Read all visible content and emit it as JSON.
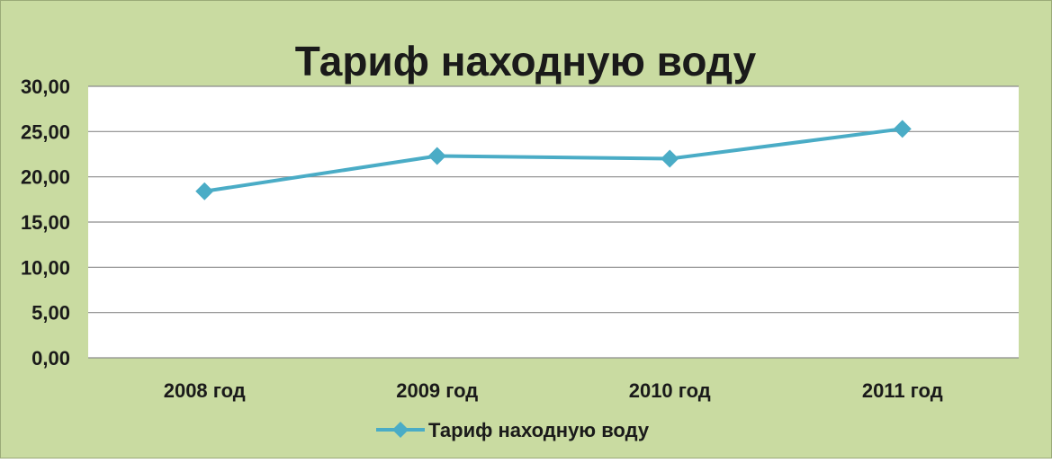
{
  "chart_data": {
    "type": "line",
    "title": "Тариф находную воду",
    "categories": [
      "2008 год",
      "2009 год",
      "2010 год",
      "2011 год"
    ],
    "series": [
      {
        "name": "Тариф находную воду",
        "values": [
          18.4,
          22.3,
          22.0,
          25.3
        ]
      }
    ],
    "ylim": [
      0,
      30
    ],
    "yticks": [
      "0,00",
      "5,00",
      "10,00",
      "15,00",
      "20,00",
      "25,00",
      "30,00"
    ],
    "grid": true,
    "legend": "bottom",
    "xlabel": "",
    "ylabel": ""
  },
  "colors": {
    "background": "#c9dba1",
    "plot_area": "#ffffff",
    "series_line": "#4aacc6",
    "gridline": "#8c8c8c",
    "text": "#1a1a1a"
  }
}
